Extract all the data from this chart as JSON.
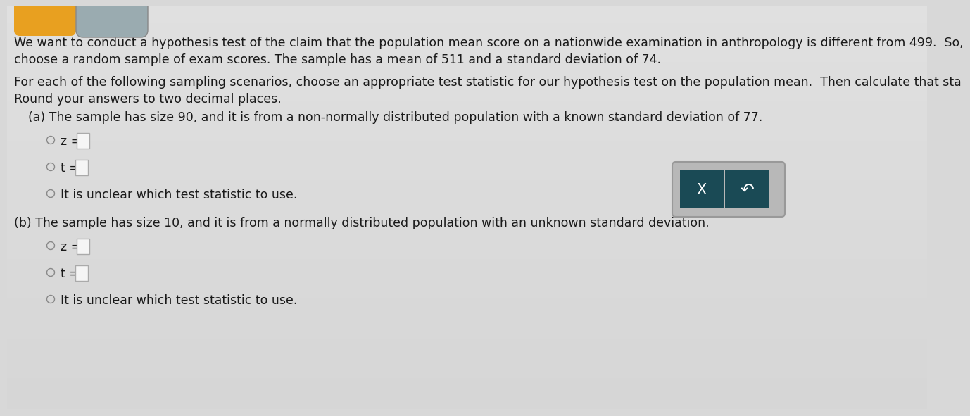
{
  "bg_color": "#d8d8d8",
  "bg_color_top": "#c8c8c8",
  "text_color": "#1a1a1a",
  "text_color_light": "#333333",
  "line1": "We want to conduct a hypothesis test of the claim that the population mean score on a nationwide examination in anthropology is different from 499.  So,",
  "line2": "choose a random sample of exam scores. The sample has a mean of 511 and a standard deviation of 74.",
  "line3": "For each of the following sampling scenarios, choose an appropriate test statistic for our hypothesis test on the population mean.  Then calculate that sta",
  "line4": "Round your answers to two decimal places.",
  "part_a": "(a) The sample has size 90, and it is from a non-normally distributed population with a known standard deviation of 77.",
  "z_label_a": "z =",
  "t_label_a": "t =",
  "unclear_a": "It is unclear which test statistic to use.",
  "part_b": "(b) The sample has size 10, and it is from a normally distributed population with an unknown standard deviation.",
  "z_label_b": "z =",
  "t_label_b": "t =",
  "unclear_b": "It is unclear which test statistic to use.",
  "radio_color": "#888888",
  "box_color": "#f5f5f5",
  "box_border": "#aaaaaa",
  "button_bg": "#1a4a55",
  "button_container": "#c8c8c8",
  "button_x_text": "X",
  "button_undo_text": "↶",
  "font_size_main": 12.5,
  "top_shape_color1": "#e8a020",
  "top_shape_color2": "#9aabb0"
}
